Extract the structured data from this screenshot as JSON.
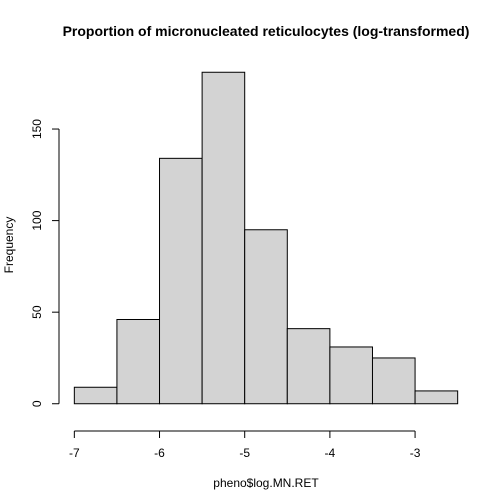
{
  "chart_data": {
    "type": "bar",
    "subtype": "histogram",
    "title": "Proportion of micronucleated reticulocytes (log-transformed)",
    "xlabel": "pheno$log.MN.RET",
    "ylabel": "Frequency",
    "bins": [
      {
        "start": -7.0,
        "end": -6.5,
        "count": 9
      },
      {
        "start": -6.5,
        "end": -6.0,
        "count": 46
      },
      {
        "start": -6.0,
        "end": -5.5,
        "count": 134
      },
      {
        "start": -5.5,
        "end": -5.0,
        "count": 181
      },
      {
        "start": -5.0,
        "end": -4.5,
        "count": 95
      },
      {
        "start": -4.5,
        "end": -4.0,
        "count": 41
      },
      {
        "start": -4.0,
        "end": -3.5,
        "count": 31
      },
      {
        "start": -3.5,
        "end": -3.0,
        "count": 25
      },
      {
        "start": -3.0,
        "end": -2.5,
        "count": 7
      }
    ],
    "xlim": [
      -7.0,
      -2.5
    ],
    "ylim": [
      0,
      181
    ],
    "x_ticks": [
      -7,
      -6,
      -5,
      -4,
      -3
    ],
    "x_tick_labels": [
      "-7",
      "-6",
      "-5",
      "-4",
      "-3"
    ],
    "y_ticks": [
      0,
      50,
      100,
      150
    ],
    "y_tick_labels": [
      "0",
      "50",
      "100",
      "150"
    ],
    "grid": false,
    "bar_color": "#d3d3d3",
    "edge_color": "#000000"
  }
}
